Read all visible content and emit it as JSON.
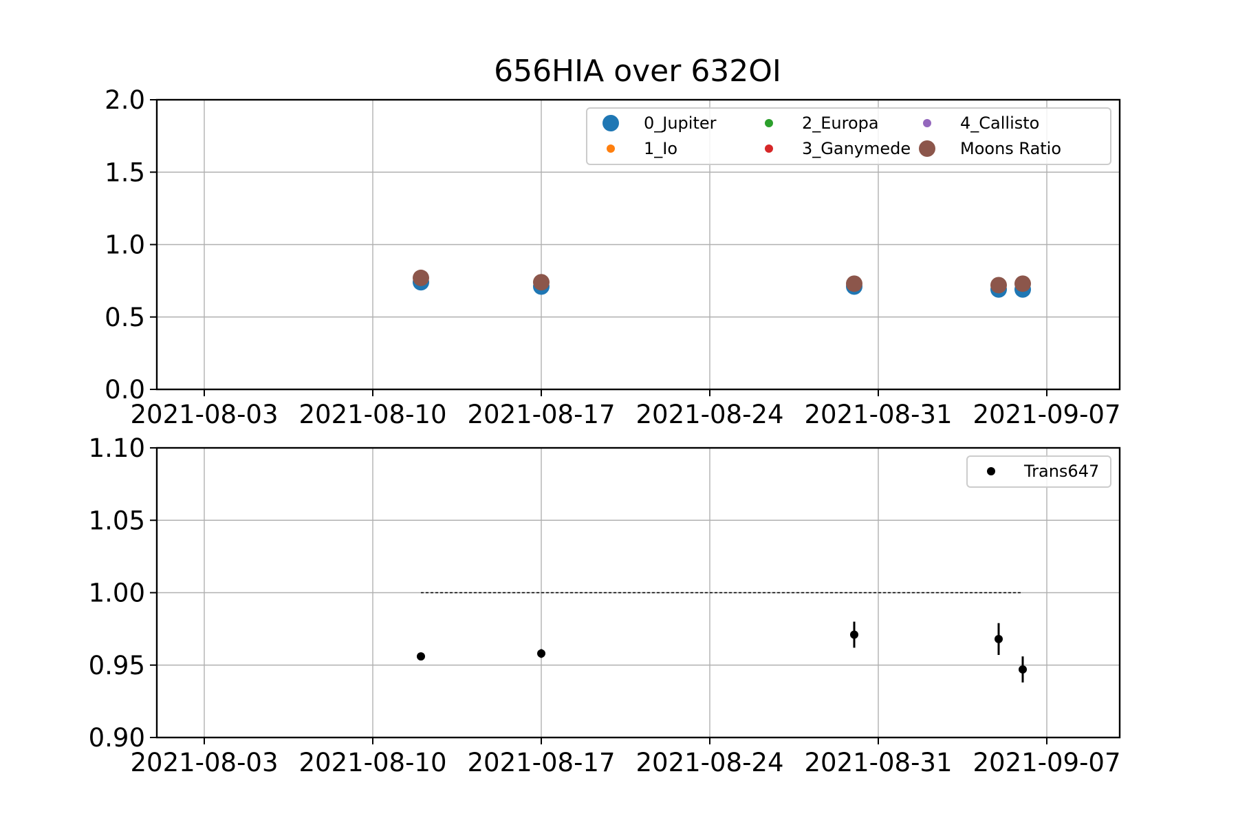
{
  "chart_data": [
    {
      "type": "scatter",
      "title": "656HIA over 632OI",
      "xlabel": "",
      "ylabel": "",
      "x_ticks": [
        "2021-08-03",
        "2021-08-10",
        "2021-08-17",
        "2021-08-24",
        "2021-08-31",
        "2021-09-07"
      ],
      "xlim": [
        "2021-08-01",
        "2021-09-10"
      ],
      "ylim": [
        0.0,
        2.0
      ],
      "y_ticks": [
        "0.0",
        "0.5",
        "1.0",
        "1.5",
        "2.0"
      ],
      "y_tick_values": [
        0.0,
        0.5,
        1.0,
        1.5,
        2.0
      ],
      "grid": true,
      "legend": {
        "placement": "upper-right",
        "columns": 3,
        "entries": [
          "0_Jupiter",
          "1_Io",
          "2_Europa",
          "3_Ganymede",
          "4_Callisto",
          "Moons Ratio"
        ]
      },
      "series": [
        {
          "name": "0_Jupiter",
          "color": "#1f77b4",
          "marker": "large",
          "x": [
            "2021-08-12",
            "2021-08-17",
            "2021-08-30",
            "2021-09-05",
            "2021-09-06"
          ],
          "y": [
            0.74,
            0.71,
            0.71,
            0.69,
            0.69
          ]
        },
        {
          "name": "1_Io",
          "color": "#ff7f0e",
          "marker": "small",
          "x": [],
          "y": []
        },
        {
          "name": "2_Europa",
          "color": "#2ca02c",
          "marker": "small",
          "x": [],
          "y": []
        },
        {
          "name": "3_Ganymede",
          "color": "#d62728",
          "marker": "small",
          "x": [],
          "y": []
        },
        {
          "name": "4_Callisto",
          "color": "#9467bd",
          "marker": "small",
          "x": [],
          "y": []
        },
        {
          "name": "Moons Ratio",
          "color": "#8c564b",
          "marker": "large",
          "x": [
            "2021-08-12",
            "2021-08-17",
            "2021-08-30",
            "2021-09-05",
            "2021-09-06"
          ],
          "y": [
            0.77,
            0.74,
            0.73,
            0.72,
            0.73
          ]
        }
      ]
    },
    {
      "type": "scatter",
      "title": "",
      "xlabel": "",
      "ylabel": "",
      "x_ticks": [
        "2021-08-03",
        "2021-08-10",
        "2021-08-17",
        "2021-08-24",
        "2021-08-31",
        "2021-09-07"
      ],
      "xlim": [
        "2021-08-01",
        "2021-09-10"
      ],
      "ylim": [
        0.9,
        1.1
      ],
      "y_ticks": [
        "0.90",
        "0.95",
        "1.00",
        "1.05",
        "1.10"
      ],
      "y_tick_values": [
        0.9,
        0.95,
        1.0,
        1.05,
        1.1
      ],
      "grid": true,
      "legend": {
        "placement": "upper-right",
        "columns": 1,
        "entries": [
          "Trans647"
        ]
      },
      "series": [
        {
          "name": "Trans647",
          "color": "#000000",
          "marker": "small-errorbar",
          "x": [
            "2021-08-12",
            "2021-08-17",
            "2021-08-30",
            "2021-09-05",
            "2021-09-06"
          ],
          "y": [
            0.956,
            0.958,
            0.971,
            0.968,
            0.947
          ],
          "yerr": [
            0.001,
            0.003,
            0.009,
            0.011,
            0.009
          ]
        }
      ],
      "reference_line": {
        "y": 1.0,
        "x_start": "2021-08-12",
        "x_end": "2021-09-06",
        "style": "dashed",
        "color": "#000000"
      }
    }
  ]
}
